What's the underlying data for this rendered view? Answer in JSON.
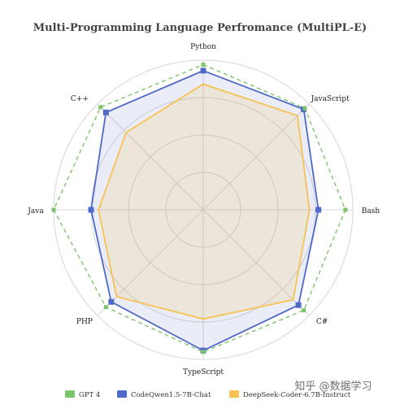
{
  "chart_data": {
    "type": "radar",
    "title": "Multi-Programming Language Perfromance (MultiPL-E)",
    "axes": [
      "Python",
      "JavaScript",
      "Bash",
      "C#",
      "TypeScript",
      "PHP",
      "Java",
      "C++"
    ],
    "rlim": [
      0,
      100
    ],
    "grid": true,
    "legend_position": "bottom",
    "series": [
      {
        "name": "GPT 4",
        "values": [
          97,
          96,
          95,
          95,
          95,
          92,
          100,
          97
        ],
        "color": "#7ec46d",
        "style": "dashed"
      },
      {
        "name": "CodeQwen1.5-7B-Chat",
        "values": [
          93,
          95,
          77,
          90,
          94,
          87,
          75,
          92
        ],
        "color": "#4f69c6",
        "style": "solid"
      },
      {
        "name": "DeepSeek-Coder-6.7B-Instruct",
        "values": [
          84,
          89,
          71,
          85,
          73,
          82,
          70,
          73
        ],
        "color": "#f7c252",
        "style": "solid"
      }
    ]
  },
  "watermark": "知乎 @数据学习"
}
